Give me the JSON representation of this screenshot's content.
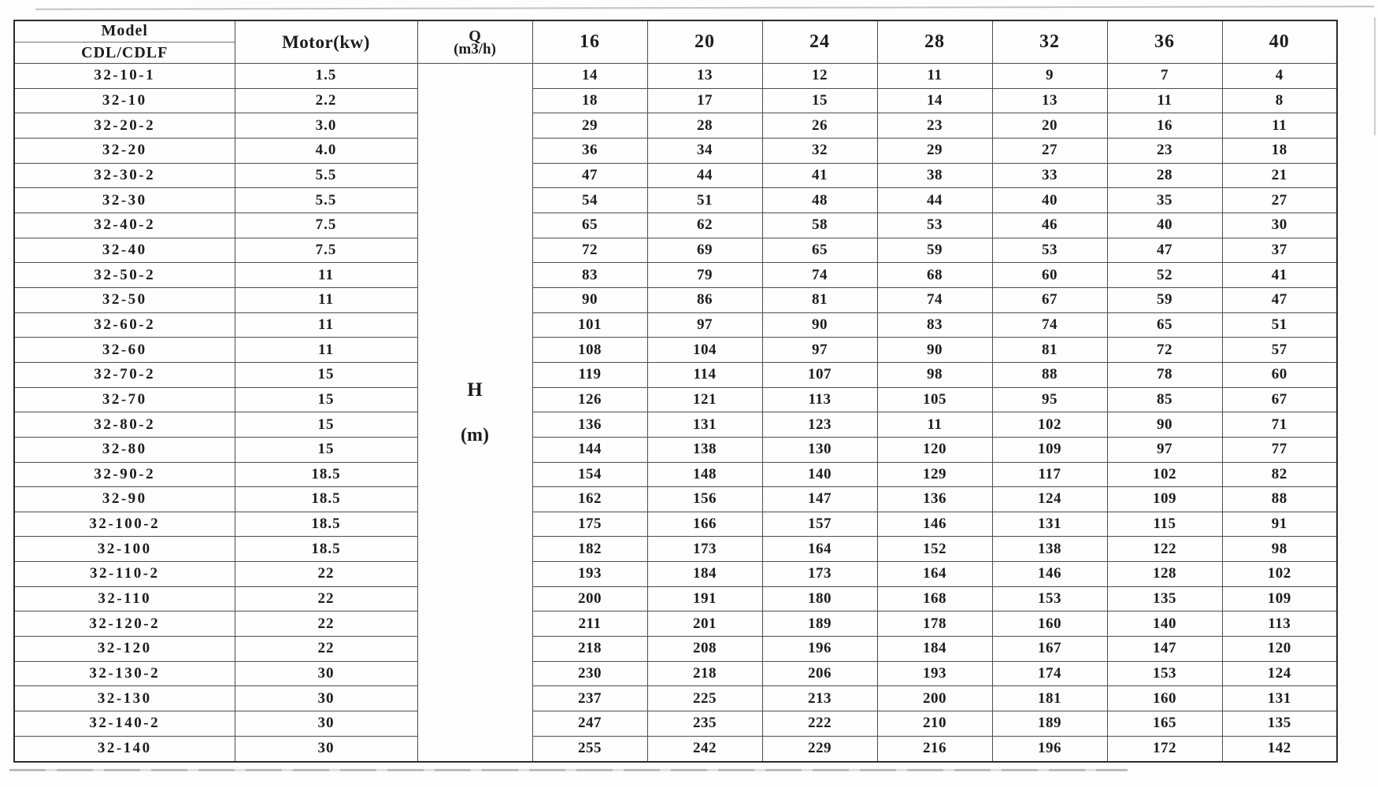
{
  "table": {
    "header": {
      "model_line1": "Model",
      "model_line2": "CDL/CDLF",
      "motor": "Motor(kw)",
      "q_line1": "Q",
      "q_line2": "(m3/h)",
      "flow_columns": [
        "16",
        "20",
        "24",
        "28",
        "32",
        "36",
        "40"
      ]
    },
    "merged_unit_cell": {
      "line1": "H",
      "line2": "(m)"
    },
    "rows": [
      {
        "model": "32-10-1",
        "motor": "1.5",
        "values": [
          "14",
          "13",
          "12",
          "11",
          "9",
          "7",
          "4"
        ]
      },
      {
        "model": "32-10",
        "motor": "2.2",
        "values": [
          "18",
          "17",
          "15",
          "14",
          "13",
          "11",
          "8"
        ]
      },
      {
        "model": "32-20-2",
        "motor": "3.0",
        "values": [
          "29",
          "28",
          "26",
          "23",
          "20",
          "16",
          "11"
        ]
      },
      {
        "model": "32-20",
        "motor": "4.0",
        "values": [
          "36",
          "34",
          "32",
          "29",
          "27",
          "23",
          "18"
        ]
      },
      {
        "model": "32-30-2",
        "motor": "5.5",
        "values": [
          "47",
          "44",
          "41",
          "38",
          "33",
          "28",
          "21"
        ]
      },
      {
        "model": "32-30",
        "motor": "5.5",
        "values": [
          "54",
          "51",
          "48",
          "44",
          "40",
          "35",
          "27"
        ]
      },
      {
        "model": "32-40-2",
        "motor": "7.5",
        "values": [
          "65",
          "62",
          "58",
          "53",
          "46",
          "40",
          "30"
        ]
      },
      {
        "model": "32-40",
        "motor": "7.5",
        "values": [
          "72",
          "69",
          "65",
          "59",
          "53",
          "47",
          "37"
        ]
      },
      {
        "model": "32-50-2",
        "motor": "11",
        "values": [
          "83",
          "79",
          "74",
          "68",
          "60",
          "52",
          "41"
        ]
      },
      {
        "model": "32-50",
        "motor": "11",
        "values": [
          "90",
          "86",
          "81",
          "74",
          "67",
          "59",
          "47"
        ]
      },
      {
        "model": "32-60-2",
        "motor": "11",
        "values": [
          "101",
          "97",
          "90",
          "83",
          "74",
          "65",
          "51"
        ]
      },
      {
        "model": "32-60",
        "motor": "11",
        "values": [
          "108",
          "104",
          "97",
          "90",
          "81",
          "72",
          "57"
        ]
      },
      {
        "model": "32-70-2",
        "motor": "15",
        "values": [
          "119",
          "114",
          "107",
          "98",
          "88",
          "78",
          "60"
        ]
      },
      {
        "model": "32-70",
        "motor": "15",
        "values": [
          "126",
          "121",
          "113",
          "105",
          "95",
          "85",
          "67"
        ]
      },
      {
        "model": "32-80-2",
        "motor": "15",
        "values": [
          "136",
          "131",
          "123",
          "11",
          "102",
          "90",
          "71"
        ]
      },
      {
        "model": "32-80",
        "motor": "15",
        "values": [
          "144",
          "138",
          "130",
          "120",
          "109",
          "97",
          "77"
        ]
      },
      {
        "model": "32-90-2",
        "motor": "18.5",
        "values": [
          "154",
          "148",
          "140",
          "129",
          "117",
          "102",
          "82"
        ]
      },
      {
        "model": "32-90",
        "motor": "18.5",
        "values": [
          "162",
          "156",
          "147",
          "136",
          "124",
          "109",
          "88"
        ]
      },
      {
        "model": "32-100-2",
        "motor": "18.5",
        "values": [
          "175",
          "166",
          "157",
          "146",
          "131",
          "115",
          "91"
        ]
      },
      {
        "model": "32-100",
        "motor": "18.5",
        "values": [
          "182",
          "173",
          "164",
          "152",
          "138",
          "122",
          "98"
        ]
      },
      {
        "model": "32-110-2",
        "motor": "22",
        "values": [
          "193",
          "184",
          "173",
          "164",
          "146",
          "128",
          "102"
        ]
      },
      {
        "model": "32-110",
        "motor": "22",
        "values": [
          "200",
          "191",
          "180",
          "168",
          "153",
          "135",
          "109"
        ]
      },
      {
        "model": "32-120-2",
        "motor": "22",
        "values": [
          "211",
          "201",
          "189",
          "178",
          "160",
          "140",
          "113"
        ]
      },
      {
        "model": "32-120",
        "motor": "22",
        "values": [
          "218",
          "208",
          "196",
          "184",
          "167",
          "147",
          "120"
        ]
      },
      {
        "model": "32-130-2",
        "motor": "30",
        "values": [
          "230",
          "218",
          "206",
          "193",
          "174",
          "153",
          "124"
        ]
      },
      {
        "model": "32-130",
        "motor": "30",
        "values": [
          "237",
          "225",
          "213",
          "200",
          "181",
          "160",
          "131"
        ]
      },
      {
        "model": "32-140-2",
        "motor": "30",
        "values": [
          "247",
          "235",
          "222",
          "210",
          "189",
          "165",
          "135"
        ]
      },
      {
        "model": "32-140",
        "motor": "30",
        "values": [
          "255",
          "242",
          "229",
          "216",
          "196",
          "172",
          "142"
        ]
      }
    ]
  }
}
